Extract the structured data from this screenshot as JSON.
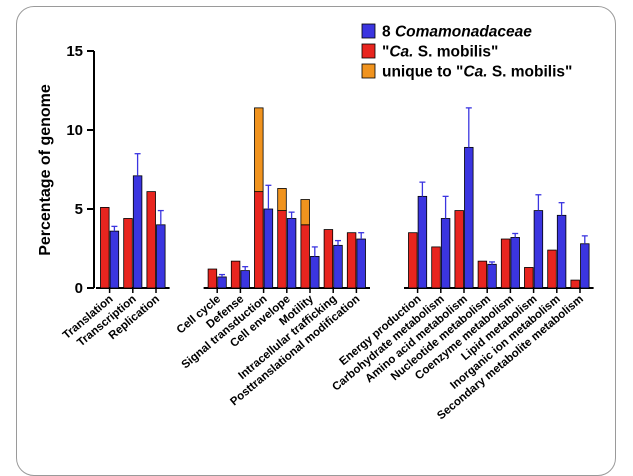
{
  "chart_data": {
    "type": "bar",
    "ylabel": "Percentage of genome",
    "ylim": [
      0,
      15
    ],
    "yticks": [
      0,
      5,
      10,
      15
    ],
    "groups": [
      [
        "Translation",
        "Transcription",
        "Replication"
      ],
      [
        "Cell cycle",
        "Defense",
        "Signal transduction",
        "Cell envelope",
        "Motility",
        "Intracellular trafficking",
        "Posttranslational modification"
      ],
      [
        "Energy production",
        "Carbohydrate metabolism",
        "Amino acid metabolism",
        "Nucleotide metabolism",
        "Coenzyme metabolism",
        "Lipid metabolism",
        "Inorganic ion metabolism",
        "Secondary metabolite metabolism"
      ]
    ],
    "categories": [
      "Translation",
      "Transcription",
      "Replication",
      "Cell cycle",
      "Defense",
      "Signal transduction",
      "Cell envelope",
      "Motility",
      "Intracellular trafficking",
      "Posttranslational modification",
      "Energy production",
      "Carbohydrate metabolism",
      "Amino acid metabolism",
      "Nucleotide metabolism",
      "Coenzyme metabolism",
      "Lipid metabolism",
      "Inorganic ion metabolism",
      "Secondary metabolite metabolism"
    ],
    "series": [
      {
        "name_prefix": "\"",
        "name_italic": "Ca.",
        "name_suffix": " S. mobilis\"",
        "color": "#e8251f",
        "values": [
          5.1,
          4.4,
          6.1,
          1.2,
          1.7,
          6.1,
          4.9,
          4.0,
          3.7,
          3.5,
          3.5,
          2.6,
          4.9,
          1.7,
          3.1,
          1.3,
          2.4,
          0.5
        ]
      },
      {
        "name_prefix": "unique to \"",
        "name_italic": "Ca.",
        "name_suffix": " S. mobilis\"",
        "color": "#f0931e",
        "stacked_on": 0,
        "values": [
          0,
          0,
          0,
          0,
          0,
          5.3,
          1.4,
          1.6,
          0,
          0,
          0,
          0,
          0,
          0,
          0,
          0,
          0,
          0
        ]
      },
      {
        "name_prefix": "8 ",
        "name_italic": "Comamonadaceae",
        "name_suffix": "",
        "color": "#3b35e0",
        "values": [
          3.6,
          7.1,
          4.0,
          0.7,
          1.1,
          5.0,
          4.4,
          2.0,
          2.7,
          3.1,
          5.8,
          4.4,
          8.9,
          1.5,
          3.2,
          4.9,
          4.6,
          2.8
        ],
        "errors": [
          0.3,
          1.4,
          0.9,
          0.15,
          0.25,
          1.5,
          0.4,
          0.6,
          0.3,
          0.4,
          0.9,
          1.4,
          2.5,
          0.15,
          0.25,
          1.0,
          0.8,
          0.5
        ]
      }
    ],
    "legend_order": [
      2,
      0,
      1
    ],
    "legend_position": "top-right"
  }
}
